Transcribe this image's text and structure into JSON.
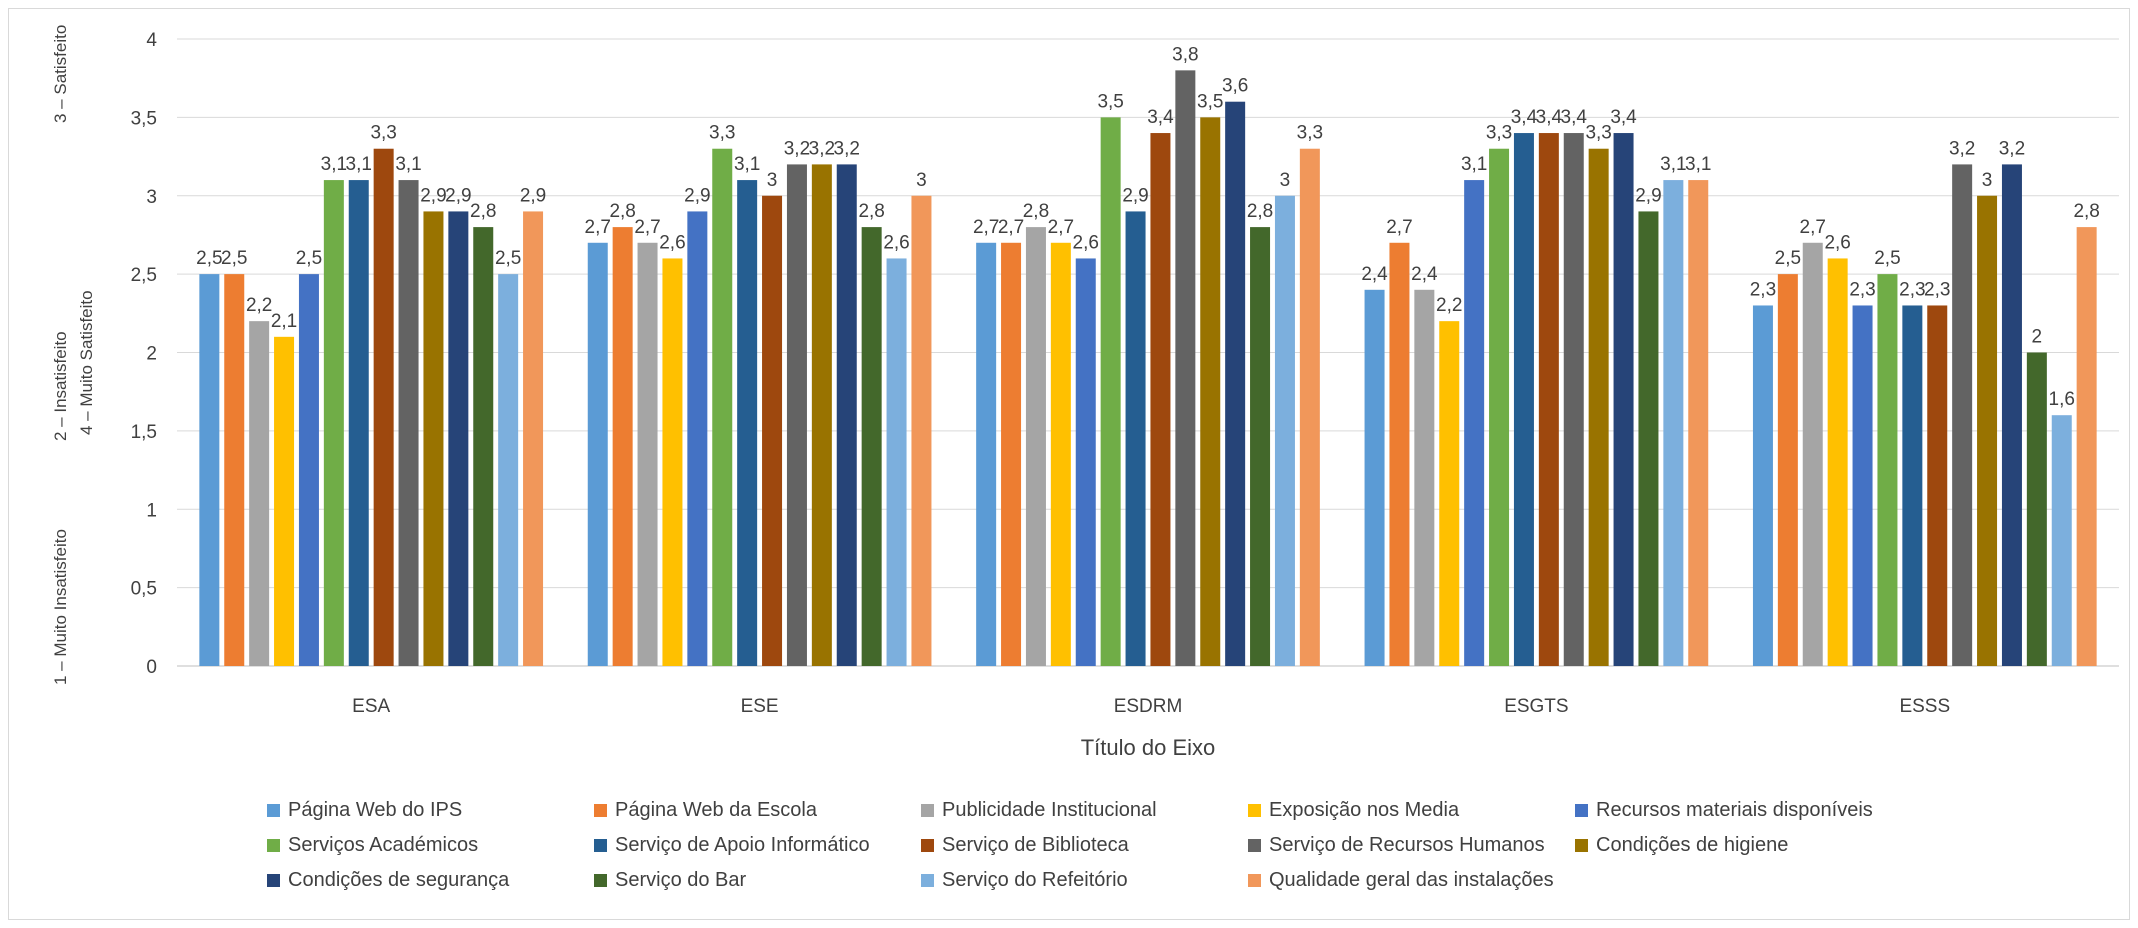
{
  "chart_data": {
    "type": "bar",
    "title": "",
    "xlabel": "Título do Eixo",
    "ylabel_lines": [
      "1 – Muito Insatisfeito",
      "2 – Insatisfeito",
      "3 – Satisfeito",
      "4 – Muito Satisfeito"
    ],
    "ylim": [
      0,
      4
    ],
    "yticks": [
      "0",
      "0,5",
      "1",
      "1,5",
      "2",
      "2,5",
      "3",
      "3,5",
      "4"
    ],
    "ytick_values": [
      0,
      0.5,
      1,
      1.5,
      2,
      2.5,
      3,
      3.5,
      4
    ],
    "grid": true,
    "legend_position": "bottom",
    "categories": [
      "ESA",
      "ESE",
      "ESDRM",
      "ESGTS",
      "ESSS"
    ],
    "series": [
      {
        "name": "Página Web do IPS",
        "color": "#5b9bd5",
        "values": [
          2.5,
          2.7,
          2.7,
          2.4,
          2.3
        ],
        "labels": [
          "2,5",
          "2,7",
          "2,7",
          "2,4",
          "2,3"
        ]
      },
      {
        "name": "Página Web da Escola",
        "color": "#ed7d31",
        "values": [
          2.5,
          2.8,
          2.7,
          2.7,
          2.5
        ],
        "labels": [
          "2,5",
          "2,8",
          "2,7",
          "2,7",
          "2,5"
        ]
      },
      {
        "name": "Publicidade Institucional",
        "color": "#a5a5a5",
        "values": [
          2.2,
          2.7,
          2.8,
          2.4,
          2.7
        ],
        "labels": [
          "2,2",
          "2,7",
          "2,8",
          "2,4",
          "2,7"
        ]
      },
      {
        "name": "Exposição nos Media",
        "color": "#ffc000",
        "values": [
          2.1,
          2.6,
          2.7,
          2.2,
          2.6
        ],
        "labels": [
          "2,1",
          "2,6",
          "2,7",
          "2,2",
          "2,6"
        ]
      },
      {
        "name": "Recursos materiais disponíveis",
        "color": "#4472c4",
        "values": [
          2.5,
          2.9,
          2.6,
          3.1,
          2.3
        ],
        "labels": [
          "2,5",
          "2,9",
          "2,6",
          "3,1",
          "2,3"
        ]
      },
      {
        "name": "Serviços Académicos",
        "color": "#70ad47",
        "values": [
          3.1,
          3.3,
          3.5,
          3.3,
          2.5
        ],
        "labels": [
          "3,1",
          "3,3",
          "3,5",
          "3,3",
          "2,5"
        ]
      },
      {
        "name": "Serviço de Apoio Informático",
        "color": "#255e91",
        "values": [
          3.1,
          3.1,
          2.9,
          3.4,
          2.3
        ],
        "labels": [
          "3,1",
          "3,1",
          "2,9",
          "3,4",
          "2,3"
        ]
      },
      {
        "name": "Serviço de Biblioteca",
        "color": "#9e480e",
        "values": [
          3.3,
          3.0,
          3.4,
          3.4,
          2.3
        ],
        "labels": [
          "3,3",
          "3",
          "3,4",
          "3,4",
          "2,3"
        ]
      },
      {
        "name": "Serviço de Recursos Humanos",
        "color": "#636363",
        "values": [
          3.1,
          3.2,
          3.8,
          3.4,
          3.2
        ],
        "labels": [
          "3,1",
          "3,2",
          "3,8",
          "3,4",
          "3,2"
        ]
      },
      {
        "name": "Condições de higiene",
        "color": "#997300",
        "values": [
          2.9,
          3.2,
          3.5,
          3.3,
          3.0
        ],
        "labels": [
          "2,9",
          "3,2",
          "3,5",
          "3,3",
          "3"
        ]
      },
      {
        "name": "Condições de segurança",
        "color": "#264478",
        "values": [
          2.9,
          3.2,
          3.6,
          3.4,
          3.2
        ],
        "labels": [
          "2,9",
          "3,2",
          "3,6",
          "3,4",
          "3,2"
        ]
      },
      {
        "name": "Serviço do Bar",
        "color": "#43682b",
        "values": [
          2.8,
          2.8,
          2.8,
          2.9,
          2.0
        ],
        "labels": [
          "2,8",
          "2,8",
          "2,8",
          "2,9",
          "2"
        ]
      },
      {
        "name": "Serviço do Refeitório",
        "color": "#7cafdd",
        "values": [
          2.5,
          2.6,
          3.0,
          3.1,
          1.6
        ],
        "labels": [
          "2,5",
          "2,6",
          "3",
          "3,1",
          "1,6"
        ]
      },
      {
        "name": "Qualidade geral das instalações",
        "color": "#f1975a",
        "values": [
          2.9,
          3.0,
          3.3,
          3.1,
          2.8
        ],
        "labels": [
          "2,9",
          "3",
          "3,3",
          "3,1",
          "2,8"
        ]
      }
    ]
  },
  "colors": {
    "grid": "#d9d9d9",
    "text": "#404040",
    "axis": "#bfbfbf"
  }
}
